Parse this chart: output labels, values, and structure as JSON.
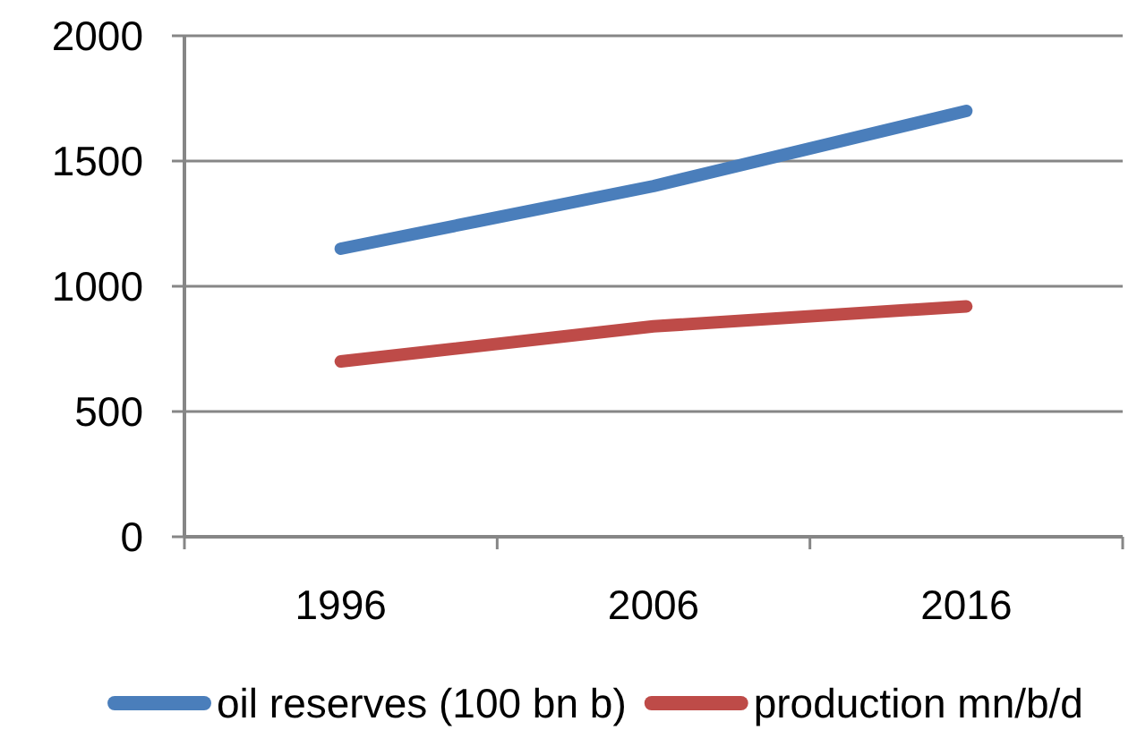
{
  "chart_data": {
    "type": "line",
    "categories": [
      "1996",
      "2006",
      "2016"
    ],
    "series": [
      {
        "name": "oil reserves (100 bn b)",
        "color": "#4a7ebb",
        "values": [
          1150,
          1400,
          1700
        ]
      },
      {
        "name": "production mn/b/d",
        "color": "#be4b48",
        "values": [
          700,
          840,
          920
        ]
      }
    ],
    "ylim": [
      0,
      2000
    ],
    "yticks": [
      0,
      500,
      1000,
      1500,
      2000
    ],
    "grid": "y",
    "legend": "bottom",
    "line_style": "solid"
  }
}
